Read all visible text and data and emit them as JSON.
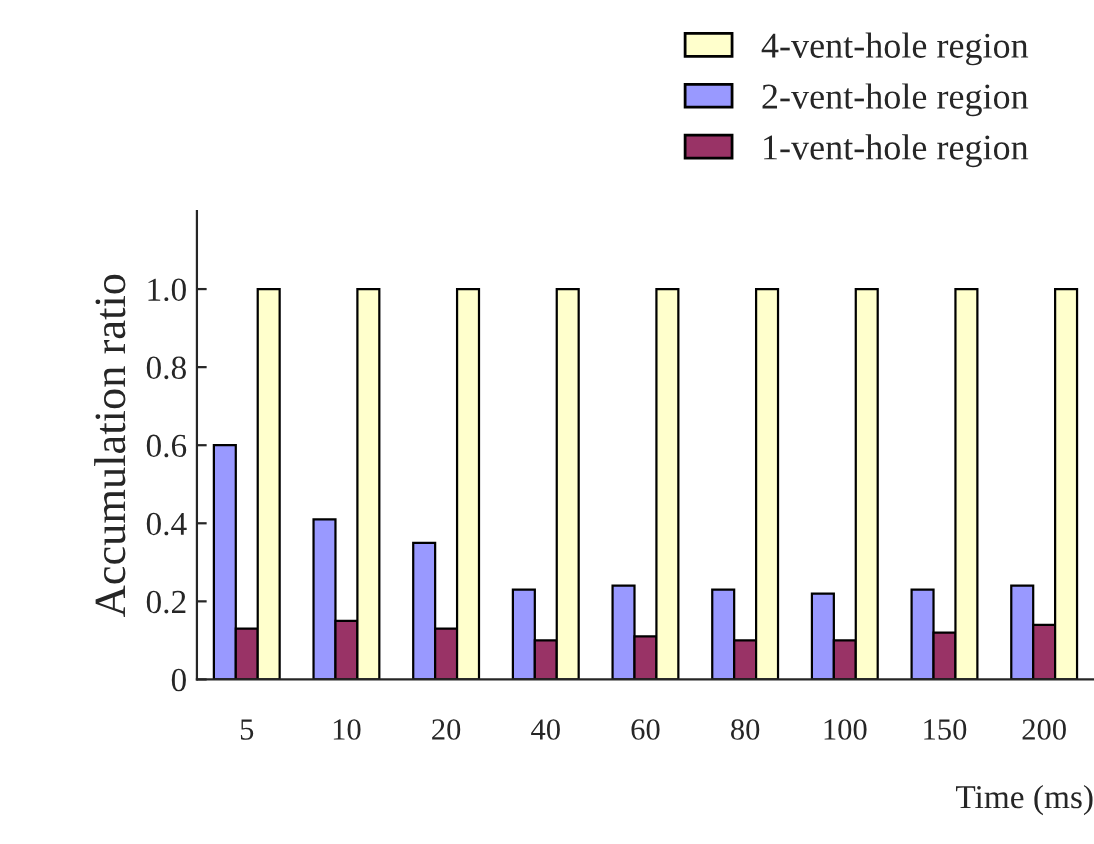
{
  "chart_data": {
    "type": "bar",
    "xlabel": "Time (ms)",
    "ylabel": "Accumulation ratio",
    "categories": [
      "5",
      "10",
      "20",
      "40",
      "60",
      "80",
      "100",
      "150",
      "200"
    ],
    "series": [
      {
        "name": "2-vent-hole region",
        "color": "#9999ff",
        "values": [
          0.6,
          0.41,
          0.35,
          0.23,
          0.24,
          0.23,
          0.22,
          0.23,
          0.24
        ]
      },
      {
        "name": "1-vent-hole region",
        "color": "#993366",
        "values": [
          0.13,
          0.15,
          0.13,
          0.1,
          0.11,
          0.1,
          0.1,
          0.12,
          0.14
        ]
      },
      {
        "name": "4-vent-hole region",
        "color": "#ffffcc",
        "values": [
          1.0,
          1.0,
          1.0,
          1.0,
          1.0,
          1.0,
          1.0,
          1.0,
          1.0
        ]
      }
    ],
    "ylim": [
      0,
      1.2
    ],
    "yticks": [
      0,
      {
        "value": 0.2,
        "label": "0.2"
      },
      {
        "value": 0.4,
        "label": "0.4"
      },
      {
        "value": 0.6,
        "label": "0.6"
      },
      {
        "value": 0.8,
        "label": "0.8"
      },
      {
        "value": 1.0,
        "label": "1.0"
      }
    ],
    "grid": false,
    "legend": "top right"
  }
}
